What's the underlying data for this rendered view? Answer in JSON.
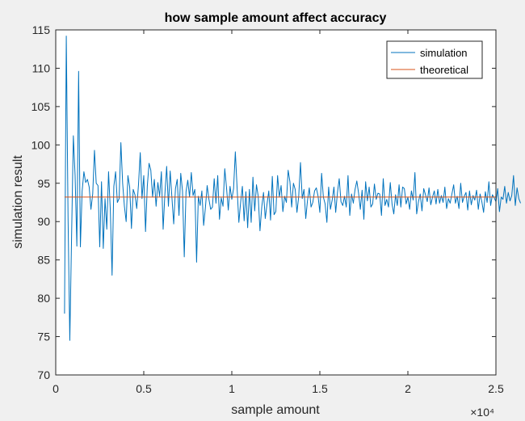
{
  "chart_data": {
    "type": "line",
    "title": "how sample amount affect accuracy",
    "xlabel": "sample amount",
    "ylabel": "simulation result",
    "xlim": [
      0,
      25000
    ],
    "ylim": [
      70,
      115
    ],
    "x_ticks": [
      0,
      5000,
      10000,
      15000,
      20000,
      25000
    ],
    "x_tick_labels": [
      "0",
      "0.5",
      "1",
      "1.5",
      "2",
      "2.5"
    ],
    "x_exponent_label": "×10⁴",
    "y_ticks": [
      70,
      75,
      80,
      85,
      90,
      95,
      100,
      105,
      110,
      115
    ],
    "y_tick_labels": [
      "70",
      "75",
      "80",
      "85",
      "90",
      "95",
      "100",
      "105",
      "110",
      "115"
    ],
    "grid": false,
    "legend_position": "top-right",
    "series": [
      {
        "name": "simulation",
        "color": "#0072bd",
        "x_start": 500,
        "x_step": 100,
        "values": [
          78.0,
          114.2,
          90.5,
          74.5,
          88.0,
          101.2,
          96.0,
          86.8,
          109.6,
          86.7,
          94.0,
          96.5,
          95.1,
          95.5,
          94.5,
          91.6,
          93.6,
          99.3,
          95.0,
          94.7,
          86.7,
          95.2,
          86.5,
          93.0,
          89.0,
          96.5,
          91.5,
          83.0,
          94.6,
          96.5,
          92.5,
          93.0,
          100.3,
          95.0,
          92.0,
          90.0,
          96.0,
          94.5,
          89.1,
          94.2,
          93.5,
          91.7,
          94.8,
          99.0,
          93.0,
          96.0,
          88.7,
          94.6,
          97.6,
          96.7,
          93.2,
          95.5,
          92.0,
          95.1,
          93.3,
          96.5,
          89.0,
          93.6,
          97.2,
          92.0,
          96.6,
          93.1,
          89.7,
          94.3,
          95.5,
          90.8,
          96.3,
          94.0,
          85.4,
          93.9,
          95.4,
          93.2,
          96.4,
          93.4,
          94.2,
          84.7,
          93.3,
          92.1,
          94.0,
          89.5,
          91.8,
          94.7,
          92.9,
          91.6,
          91.9,
          95.6,
          92.4,
          96.0,
          90.3,
          93.1,
          92.0,
          96.9,
          94.4,
          91.5,
          94.6,
          92.9,
          94.3,
          99.1,
          94.4,
          89.9,
          92.5,
          94.6,
          90.1,
          93.9,
          89.2,
          94.2,
          89.9,
          95.8,
          91.4,
          94.8,
          93.3,
          88.8,
          91.9,
          93.8,
          90.4,
          92.3,
          94.0,
          90.2,
          95.9,
          90.9,
          91.3,
          96.0,
          93.2,
          94.7,
          91.3,
          93.3,
          92.5,
          96.7,
          95.2,
          91.9,
          95.0,
          94.2,
          91.2,
          93.3,
          97.7,
          93.0,
          94.2,
          90.4,
          92.8,
          94.4,
          91.9,
          92.5,
          94.0,
          94.4,
          93.3,
          91.2,
          96.3,
          93.2,
          92.3,
          89.9,
          94.5,
          91.6,
          92.8,
          94.5,
          91.2,
          93.8,
          95.6,
          92.6,
          92.1,
          93.3,
          91.9,
          96.0,
          90.8,
          93.6,
          92.4,
          94.2,
          95.3,
          93.7,
          91.6,
          94.1,
          90.3,
          95.2,
          92.7,
          94.5,
          91.9,
          92.3,
          94.9,
          92.9,
          93.7,
          93.6,
          90.8,
          95.6,
          92.1,
          92.9,
          91.9,
          95.1,
          92.3,
          91.0,
          93.5,
          92.1,
          94.8,
          91.9,
          94.5,
          94.3,
          92.3,
          93.2,
          91.6,
          94.0,
          92.8,
          96.4,
          91.0,
          92.6,
          93.6,
          91.4,
          94.3,
          93.5,
          92.6,
          94.4,
          92.2,
          93.2,
          94.0,
          92.3,
          94.2,
          92.4,
          93.4,
          92.5,
          94.5,
          91.7,
          93.0,
          92.4,
          93.6,
          94.8,
          92.4,
          93.3,
          91.7,
          95.0,
          92.5,
          93.3,
          93.8,
          91.5,
          94.0,
          92.2,
          93.4,
          92.8,
          94.1,
          91.6,
          93.6,
          92.6,
          91.2,
          93.9,
          92.5,
          95.2,
          92.1,
          93.5,
          93.1,
          92.6,
          94.3,
          91.3,
          93.2,
          92.9,
          94.6,
          92.4,
          93.8,
          92.7,
          93.4,
          96.0,
          92.1,
          94.4,
          93.0,
          92.4
        ]
      },
      {
        "name": "theoretical",
        "color": "#d95319",
        "x": [
          500,
          25000
        ],
        "values": [
          93.2,
          93.2
        ]
      }
    ]
  }
}
